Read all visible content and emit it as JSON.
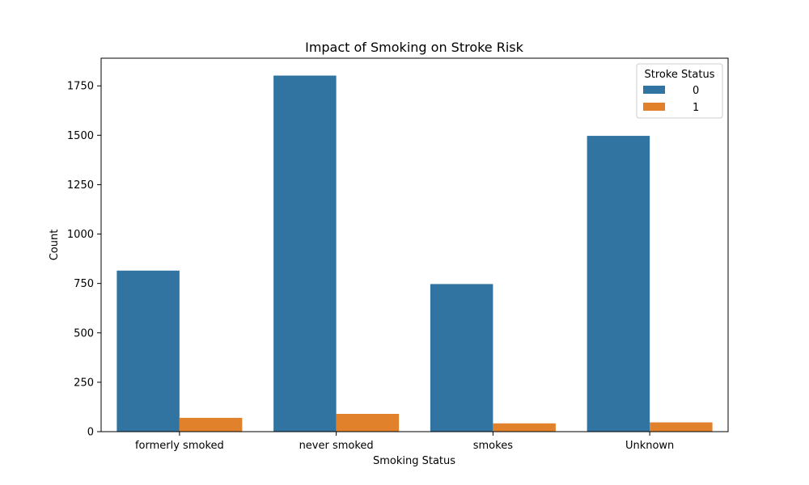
{
  "chart_data": {
    "type": "bar",
    "title": "Impact of Smoking on Stroke Risk",
    "xlabel": "Smoking Status",
    "ylabel": "Count",
    "categories": [
      "formerly smoked",
      "never smoked",
      "smokes",
      "Unknown"
    ],
    "series": [
      {
        "name": "0",
        "values": [
          815,
          1802,
          747,
          1497
        ],
        "color": "#3274a1"
      },
      {
        "name": "1",
        "values": [
          70,
          90,
          42,
          47
        ],
        "color": "#e1812c"
      }
    ],
    "ylim": [
      0,
      1890
    ],
    "yticks": [
      0,
      250,
      500,
      750,
      1000,
      1250,
      1500,
      1750
    ],
    "grid": false,
    "legend": {
      "title": "Stroke Status",
      "placement": "top-right"
    }
  }
}
